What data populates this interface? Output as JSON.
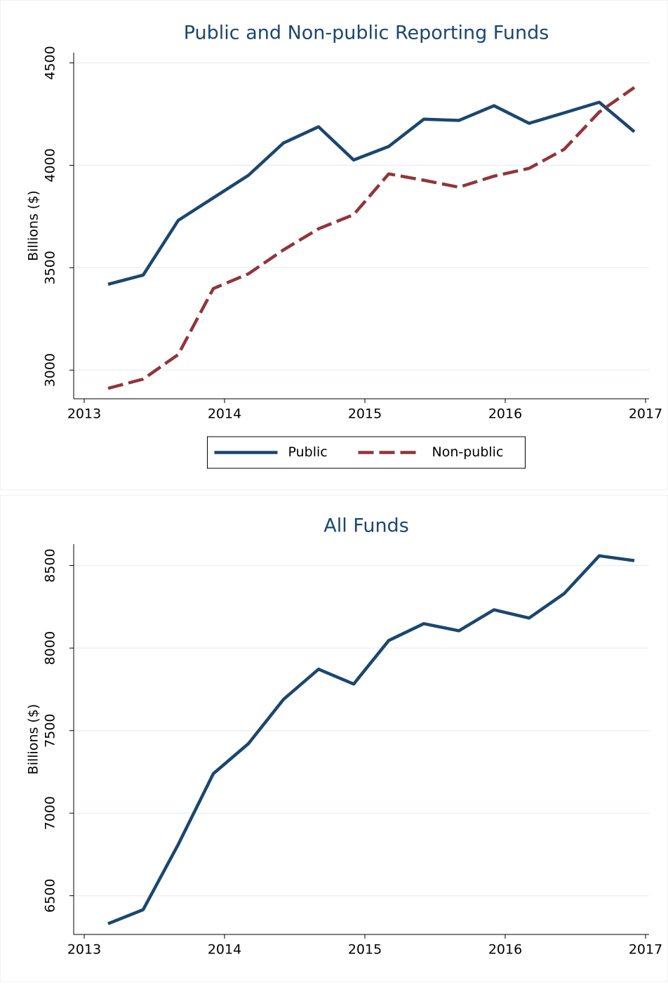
{
  "chart_data": [
    {
      "type": "line",
      "title": "Public and Non-public Reporting Funds",
      "ylabel": "Billions ($)",
      "x": [
        2013.17,
        2013.42,
        2013.67,
        2013.92,
        2014.17,
        2014.42,
        2014.67,
        2014.92,
        2015.17,
        2015.42,
        2015.67,
        2015.92,
        2016.17,
        2016.42,
        2016.67,
        2016.92
      ],
      "series": [
        {
          "name": "Public",
          "color": "#1a476f",
          "line_style": "solid",
          "values": [
            3419,
            3464,
            3731,
            3841,
            3951,
            4109,
            4188,
            4026,
            4092,
            4225,
            4219,
            4291,
            4205,
            4256,
            4308,
            4164
          ]
        },
        {
          "name": "Non-public",
          "color": "#90353b",
          "line_style": "dashed",
          "values": [
            2911,
            2956,
            3076,
            3398,
            3470,
            3587,
            3690,
            3759,
            3958,
            3927,
            3893,
            3947,
            3985,
            4078,
            4260,
            4380
          ]
        }
      ],
      "xlim": [
        2012.925,
        2017.025
      ],
      "xticks": [
        2013,
        2014,
        2015,
        2016,
        2017
      ],
      "ylim": [
        2860,
        4550
      ],
      "yticks": [
        3000,
        3500,
        4000,
        4500
      ],
      "grid": true,
      "legend": "bottom"
    },
    {
      "type": "line",
      "title": "All Funds",
      "ylabel": "Billions ($)",
      "x": [
        2013.17,
        2013.42,
        2013.67,
        2013.92,
        2014.17,
        2014.42,
        2014.67,
        2014.92,
        2015.17,
        2015.42,
        2015.67,
        2015.92,
        2016.17,
        2016.42,
        2016.67,
        2016.92
      ],
      "series": [
        {
          "color": "#1a476f",
          "line_style": "solid",
          "values": [
            6330,
            6415,
            6810,
            7239,
            7421,
            7689,
            7872,
            7782,
            8046,
            8148,
            8105,
            8232,
            8182,
            8330,
            8559,
            8530
          ]
        }
      ],
      "xlim": [
        2012.925,
        2017.025
      ],
      "xticks": [
        2013,
        2014,
        2015,
        2016,
        2017
      ],
      "ylim": [
        6265,
        8630
      ],
      "yticks": [
        6500,
        7000,
        7500,
        8000,
        8500
      ],
      "grid": true
    }
  ]
}
